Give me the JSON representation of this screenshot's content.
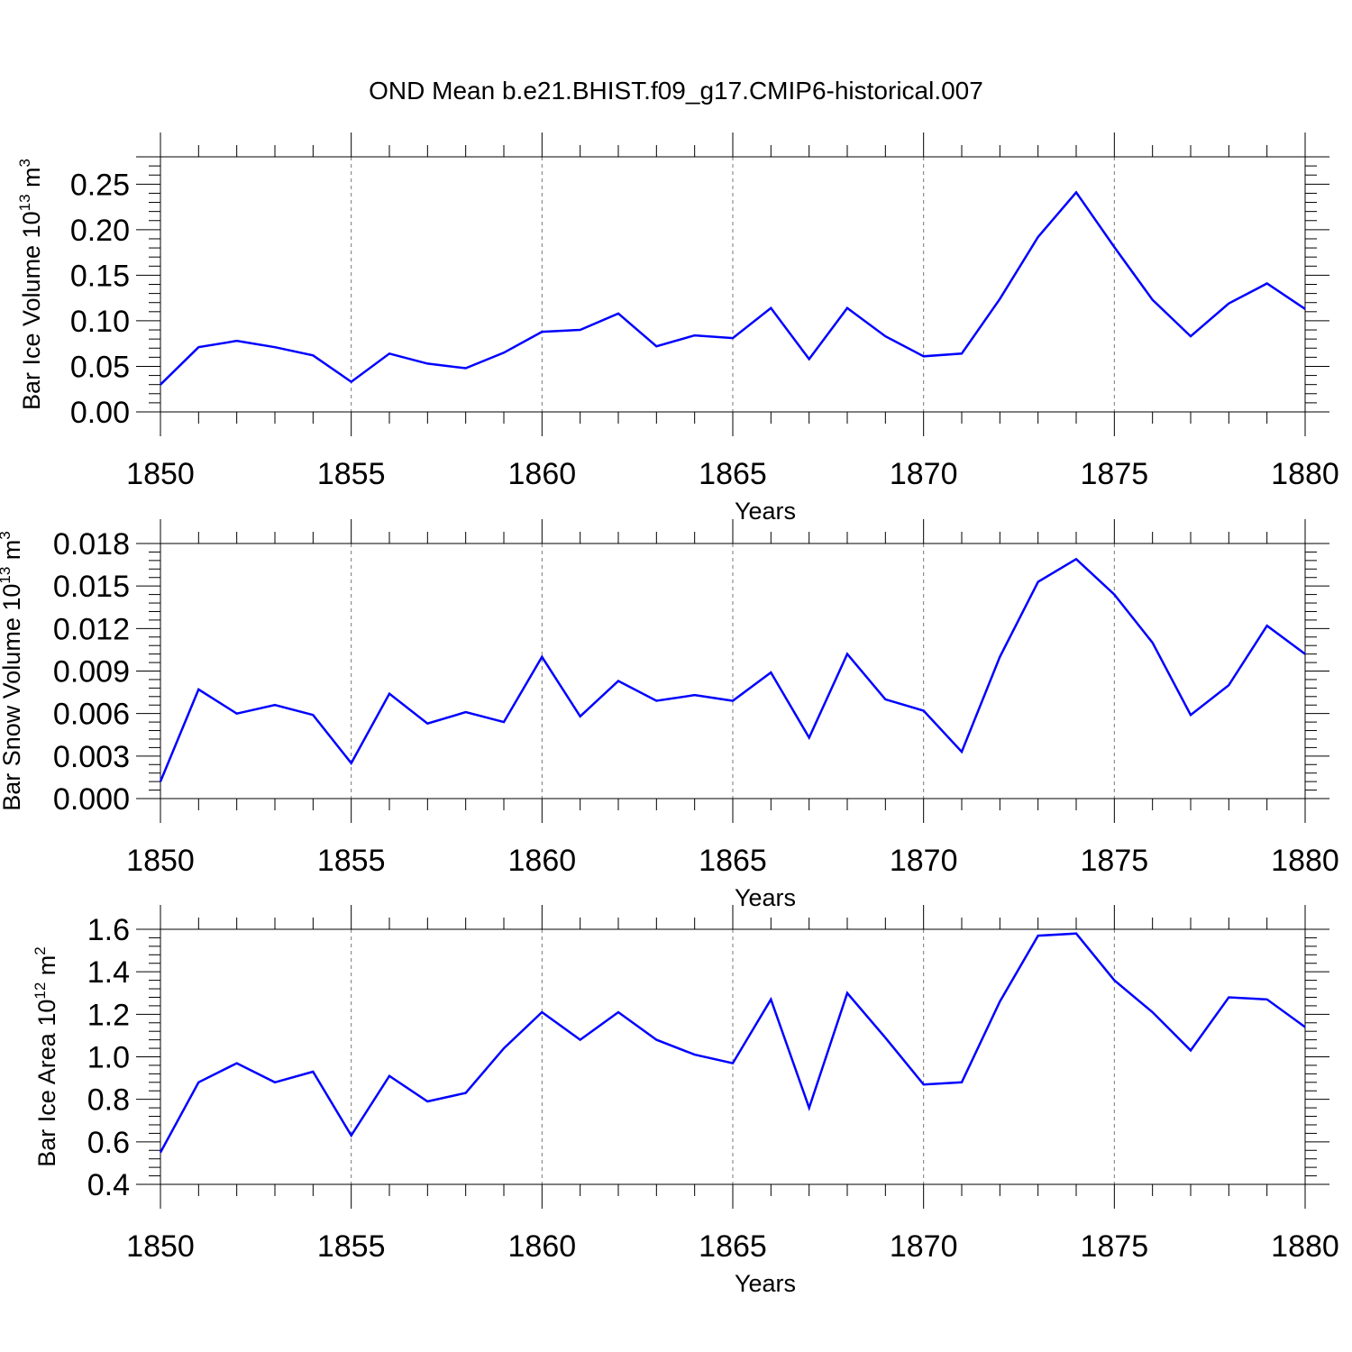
{
  "title": "OND Mean b.e21.BHIST.f09_g17.CMIP6-historical.007",
  "colors": {
    "series": "#0000ff",
    "axis": "#000000",
    "grid": "#777777"
  },
  "chart_data": [
    {
      "type": "line",
      "xlabel": "Years",
      "ylabel": {
        "text": "Bar Ice Volume 10",
        "exponent": "13",
        "unit": "m",
        "unit_exponent": "3"
      },
      "xlim": [
        1850,
        1880
      ],
      "ylim": [
        0.0,
        0.28
      ],
      "x_ticks": [
        1850,
        1855,
        1860,
        1865,
        1870,
        1875,
        1880
      ],
      "x_tick_labels": [
        "1850",
        "1855",
        "1860",
        "1865",
        "1870",
        "1875",
        "1880"
      ],
      "y_ticks": [
        0.0,
        0.05,
        0.1,
        0.15,
        0.2,
        0.25
      ],
      "y_tick_labels": [
        "0.00",
        "0.05",
        "0.10",
        "0.15",
        "0.20",
        "0.25"
      ],
      "y_minor_step": 0.01,
      "grid": "vertical dashed at major x ticks",
      "series": [
        {
          "name": "Bar Ice Volume",
          "x": [
            1850,
            1851,
            1852,
            1853,
            1854,
            1855,
            1856,
            1857,
            1858,
            1859,
            1860,
            1861,
            1862,
            1863,
            1864,
            1865,
            1866,
            1867,
            1868,
            1869,
            1870,
            1871,
            1872,
            1873,
            1874,
            1875,
            1876,
            1877,
            1878,
            1879,
            1880
          ],
          "values": [
            0.03,
            0.071,
            0.078,
            0.071,
            0.062,
            0.033,
            0.064,
            0.053,
            0.048,
            0.065,
            0.088,
            0.09,
            0.108,
            0.072,
            0.084,
            0.081,
            0.114,
            0.058,
            0.114,
            0.083,
            0.061,
            0.064,
            0.124,
            0.192,
            0.241,
            0.181,
            0.123,
            0.083,
            0.119,
            0.141,
            0.113
          ]
        }
      ]
    },
    {
      "type": "line",
      "xlabel": "Years",
      "ylabel": {
        "text": "Bar Snow Volume 10",
        "exponent": "13",
        "unit": "m",
        "unit_exponent": "3"
      },
      "xlim": [
        1850,
        1880
      ],
      "ylim": [
        0.0,
        0.018
      ],
      "x_ticks": [
        1850,
        1855,
        1860,
        1865,
        1870,
        1875,
        1880
      ],
      "x_tick_labels": [
        "1850",
        "1855",
        "1860",
        "1865",
        "1870",
        "1875",
        "1880"
      ],
      "y_ticks": [
        0.0,
        0.003,
        0.006,
        0.009,
        0.012,
        0.015,
        0.018
      ],
      "y_tick_labels": [
        "0.000",
        "0.003",
        "0.006",
        "0.009",
        "0.012",
        "0.015",
        "0.018"
      ],
      "y_minor_step": 0.0006,
      "grid": "vertical dashed at major x ticks",
      "series": [
        {
          "name": "Bar Snow Volume",
          "x": [
            1850,
            1851,
            1852,
            1853,
            1854,
            1855,
            1856,
            1857,
            1858,
            1859,
            1860,
            1861,
            1862,
            1863,
            1864,
            1865,
            1866,
            1867,
            1868,
            1869,
            1870,
            1871,
            1872,
            1873,
            1874,
            1875,
            1876,
            1877,
            1878,
            1879,
            1880
          ],
          "values": [
            0.0012,
            0.0077,
            0.006,
            0.0066,
            0.0059,
            0.0025,
            0.0074,
            0.0053,
            0.0061,
            0.0054,
            0.01,
            0.0058,
            0.0083,
            0.0069,
            0.0073,
            0.0069,
            0.0089,
            0.0043,
            0.0102,
            0.007,
            0.0062,
            0.0033,
            0.01,
            0.0153,
            0.0169,
            0.0144,
            0.011,
            0.0059,
            0.008,
            0.0122,
            0.0102
          ]
        }
      ]
    },
    {
      "type": "line",
      "xlabel": "Years",
      "ylabel": {
        "text": "Bar Ice Area 10",
        "exponent": "12",
        "unit": "m",
        "unit_exponent": "2"
      },
      "xlim": [
        1850,
        1880
      ],
      "ylim": [
        0.4,
        1.6
      ],
      "x_ticks": [
        1850,
        1855,
        1860,
        1865,
        1870,
        1875,
        1880
      ],
      "x_tick_labels": [
        "1850",
        "1855",
        "1860",
        "1865",
        "1870",
        "1875",
        "1880"
      ],
      "y_ticks": [
        0.4,
        0.6,
        0.8,
        1.0,
        1.2,
        1.4,
        1.6
      ],
      "y_tick_labels": [
        "0.4",
        "0.6",
        "0.8",
        "1.0",
        "1.2",
        "1.4",
        "1.6"
      ],
      "y_minor_step": 0.04,
      "grid": "vertical dashed at major x ticks",
      "series": [
        {
          "name": "Bar Ice Area",
          "x": [
            1850,
            1851,
            1852,
            1853,
            1854,
            1855,
            1856,
            1857,
            1858,
            1859,
            1860,
            1861,
            1862,
            1863,
            1864,
            1865,
            1866,
            1867,
            1868,
            1869,
            1870,
            1871,
            1872,
            1873,
            1874,
            1875,
            1876,
            1877,
            1878,
            1879,
            1880
          ],
          "values": [
            0.55,
            0.88,
            0.97,
            0.88,
            0.93,
            0.63,
            0.91,
            0.79,
            0.83,
            1.04,
            1.21,
            1.08,
            1.21,
            1.08,
            1.01,
            0.97,
            1.27,
            0.76,
            1.3,
            1.09,
            0.87,
            0.88,
            1.26,
            1.57,
            1.58,
            1.36,
            1.21,
            1.03,
            1.28,
            1.27,
            1.14
          ]
        }
      ]
    }
  ]
}
